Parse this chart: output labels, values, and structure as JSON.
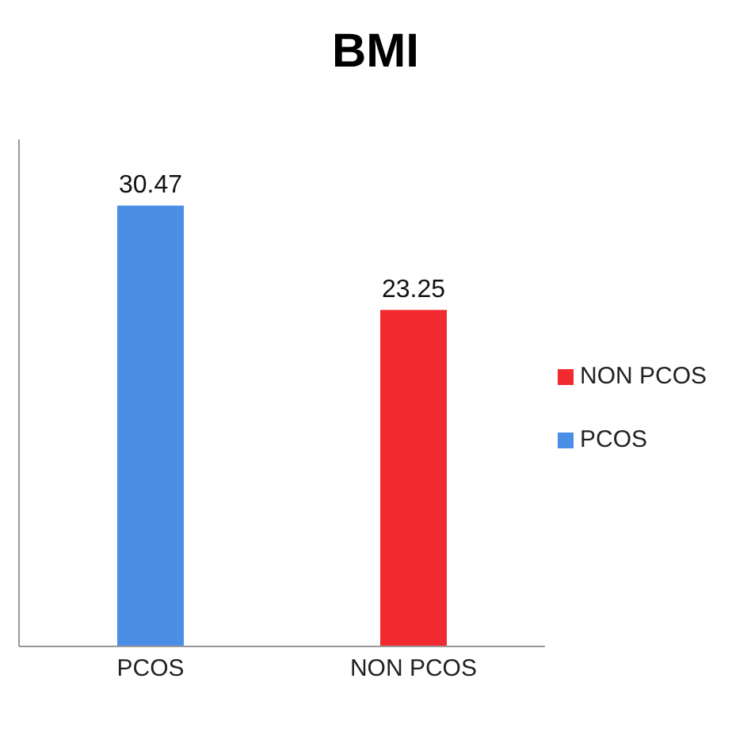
{
  "chart_data": {
    "type": "bar",
    "title": "BMI",
    "categories": [
      "PCOS",
      "NON PCOS"
    ],
    "series": [
      {
        "name": "PCOS",
        "color": "#4a8ee6",
        "values": [
          30.47,
          null
        ]
      },
      {
        "name": "NON PCOS",
        "color": "#f02a2f",
        "values": [
          null,
          23.25
        ]
      }
    ],
    "data_labels": true,
    "grid": false,
    "legend": "right"
  }
}
